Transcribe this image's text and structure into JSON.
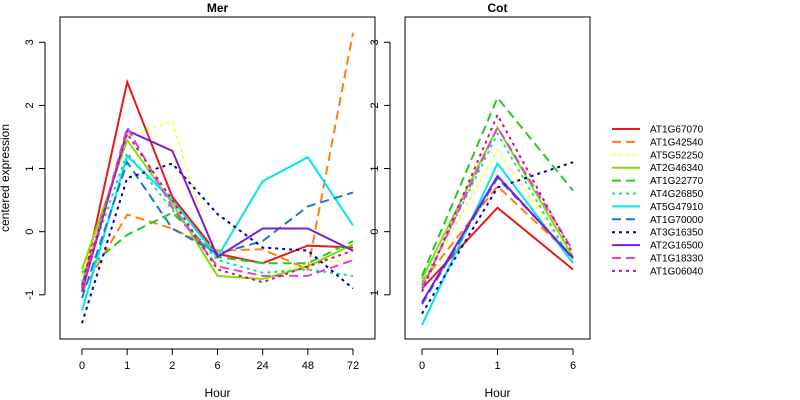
{
  "chart_data": {
    "type": "line",
    "ylabel": "centered expression",
    "xlabel": "Hour",
    "ylim": [
      -1.7,
      3.4
    ],
    "yticks": [
      -1,
      0,
      1,
      2,
      3
    ],
    "grid": false,
    "legend_position": "right",
    "panels": [
      {
        "title": "Mer",
        "categories": [
          "0",
          "1",
          "2",
          "6",
          "24",
          "48",
          "72"
        ]
      },
      {
        "title": "Cot",
        "categories": [
          "0",
          "1",
          "6"
        ]
      }
    ],
    "series": [
      {
        "name": "AT1G67070",
        "color": "#e41a1c",
        "dash": "solid",
        "mer": [
          -0.9,
          2.37,
          0.55,
          -0.35,
          -0.5,
          -0.22,
          -0.25
        ],
        "cot": [
          -0.9,
          0.38,
          -0.6
        ]
      },
      {
        "name": "AT1G42540",
        "color": "#ff7f0e",
        "dash": "dashed",
        "mer": [
          -0.95,
          0.27,
          0.05,
          -0.3,
          -0.28,
          -0.6,
          3.15
        ],
        "cot": [
          -0.8,
          0.72,
          -0.4
        ]
      },
      {
        "name": "AT5G52250",
        "color": "#ffff33",
        "dash": "dotted",
        "mer": [
          -0.7,
          1.52,
          1.75,
          -0.55,
          -0.7,
          -0.5,
          -0.45
        ],
        "cot": [
          -0.85,
          1.3,
          -0.45
        ]
      },
      {
        "name": "AT2G46340",
        "color": "#80e000",
        "dash": "solid",
        "mer": [
          -0.6,
          1.45,
          0.45,
          -0.7,
          -0.75,
          -0.55,
          -0.2
        ],
        "cot": [
          -0.75,
          1.65,
          -0.4
        ]
      },
      {
        "name": "AT1G22770",
        "color": "#22cc22",
        "dash": "dashed",
        "mer": [
          -0.65,
          -0.05,
          0.3,
          -0.4,
          -0.5,
          -0.5,
          -0.15
        ],
        "cot": [
          -0.7,
          2.12,
          0.65
        ]
      },
      {
        "name": "AT4G26850",
        "color": "#22dd88",
        "dash": "dotted",
        "mer": [
          -0.8,
          1.25,
          0.35,
          -0.45,
          -0.65,
          -0.6,
          -0.7
        ],
        "cot": [
          -0.85,
          1.55,
          -0.5
        ]
      },
      {
        "name": "AT5G47910",
        "color": "#00e5ee",
        "dash": "solid",
        "mer": [
          -1.25,
          1.2,
          0.5,
          -0.4,
          0.8,
          1.18,
          0.1
        ],
        "cot": [
          -1.48,
          1.08,
          -0.5
        ]
      },
      {
        "name": "AT1G70000",
        "color": "#1f77d4",
        "dash": "dashed",
        "mer": [
          -1.05,
          1.1,
          0.05,
          -0.35,
          -0.15,
          0.4,
          0.62
        ],
        "cot": [
          -1.15,
          0.85,
          -0.4
        ]
      },
      {
        "name": "AT3G16350",
        "color": "#0000aa",
        "dash": "dotted",
        "mer": [
          -1.45,
          0.85,
          1.08,
          0.28,
          -0.25,
          -0.3,
          -0.9
        ],
        "cot": [
          -1.3,
          0.7,
          1.1
        ]
      },
      {
        "name": "AT2G16500",
        "color": "#7a1fd2",
        "dash": "solid",
        "mer": [
          -0.95,
          1.6,
          1.28,
          -0.4,
          0.05,
          0.05,
          -0.3
        ],
        "cot": [
          -1.12,
          0.88,
          -0.42
        ]
      },
      {
        "name": "AT1G18330",
        "color": "#e040e0",
        "dash": "dashed",
        "mer": [
          -0.9,
          1.65,
          0.38,
          -0.55,
          -0.7,
          -0.7,
          -0.45
        ],
        "cot": [
          -0.9,
          1.65,
          -0.3
        ]
      },
      {
        "name": "AT1G06040",
        "color": "#c71585",
        "dash": "dotted",
        "mer": [
          -0.85,
          1.55,
          0.5,
          -0.6,
          -0.8,
          -0.55,
          -0.3
        ],
        "cot": [
          -0.95,
          1.85,
          -0.35
        ]
      }
    ]
  }
}
